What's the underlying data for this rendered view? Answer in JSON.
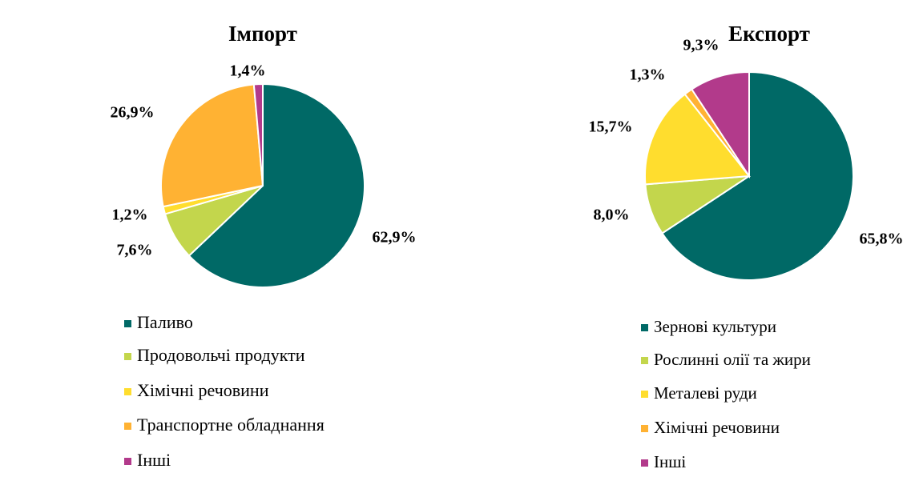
{
  "chart_data": [
    {
      "type": "pie",
      "title": "Імпорт",
      "categories": [
        "Паливо",
        "Продовольчі продукти",
        "Хімічні речовини",
        "Транспортне обладнання",
        "Інші"
      ],
      "values": [
        62.9,
        7.6,
        1.2,
        26.9,
        1.4
      ],
      "value_labels": [
        "62,9%",
        "7,6%",
        "1,2%",
        "26,9%",
        "1,4%"
      ],
      "colors": [
        "#006966",
        "#c3d64c",
        "#ffdd2e",
        "#ffb233",
        "#b23a8b"
      ]
    },
    {
      "type": "pie",
      "title": "Експорт",
      "categories": [
        "Зернові культури",
        "Рослинні олії та жири",
        "Металеві руди",
        "Хімічні речовини",
        "Інші"
      ],
      "values": [
        65.8,
        8,
        15.7,
        1.3,
        9.3
      ],
      "value_labels": [
        "65,8%",
        "8,0%",
        "15,7%",
        "1,3%",
        "9,3%"
      ],
      "colors": [
        "#006966",
        "#c3d64c",
        "#ffdd2e",
        "#ffb233",
        "#b23a8b"
      ]
    }
  ]
}
